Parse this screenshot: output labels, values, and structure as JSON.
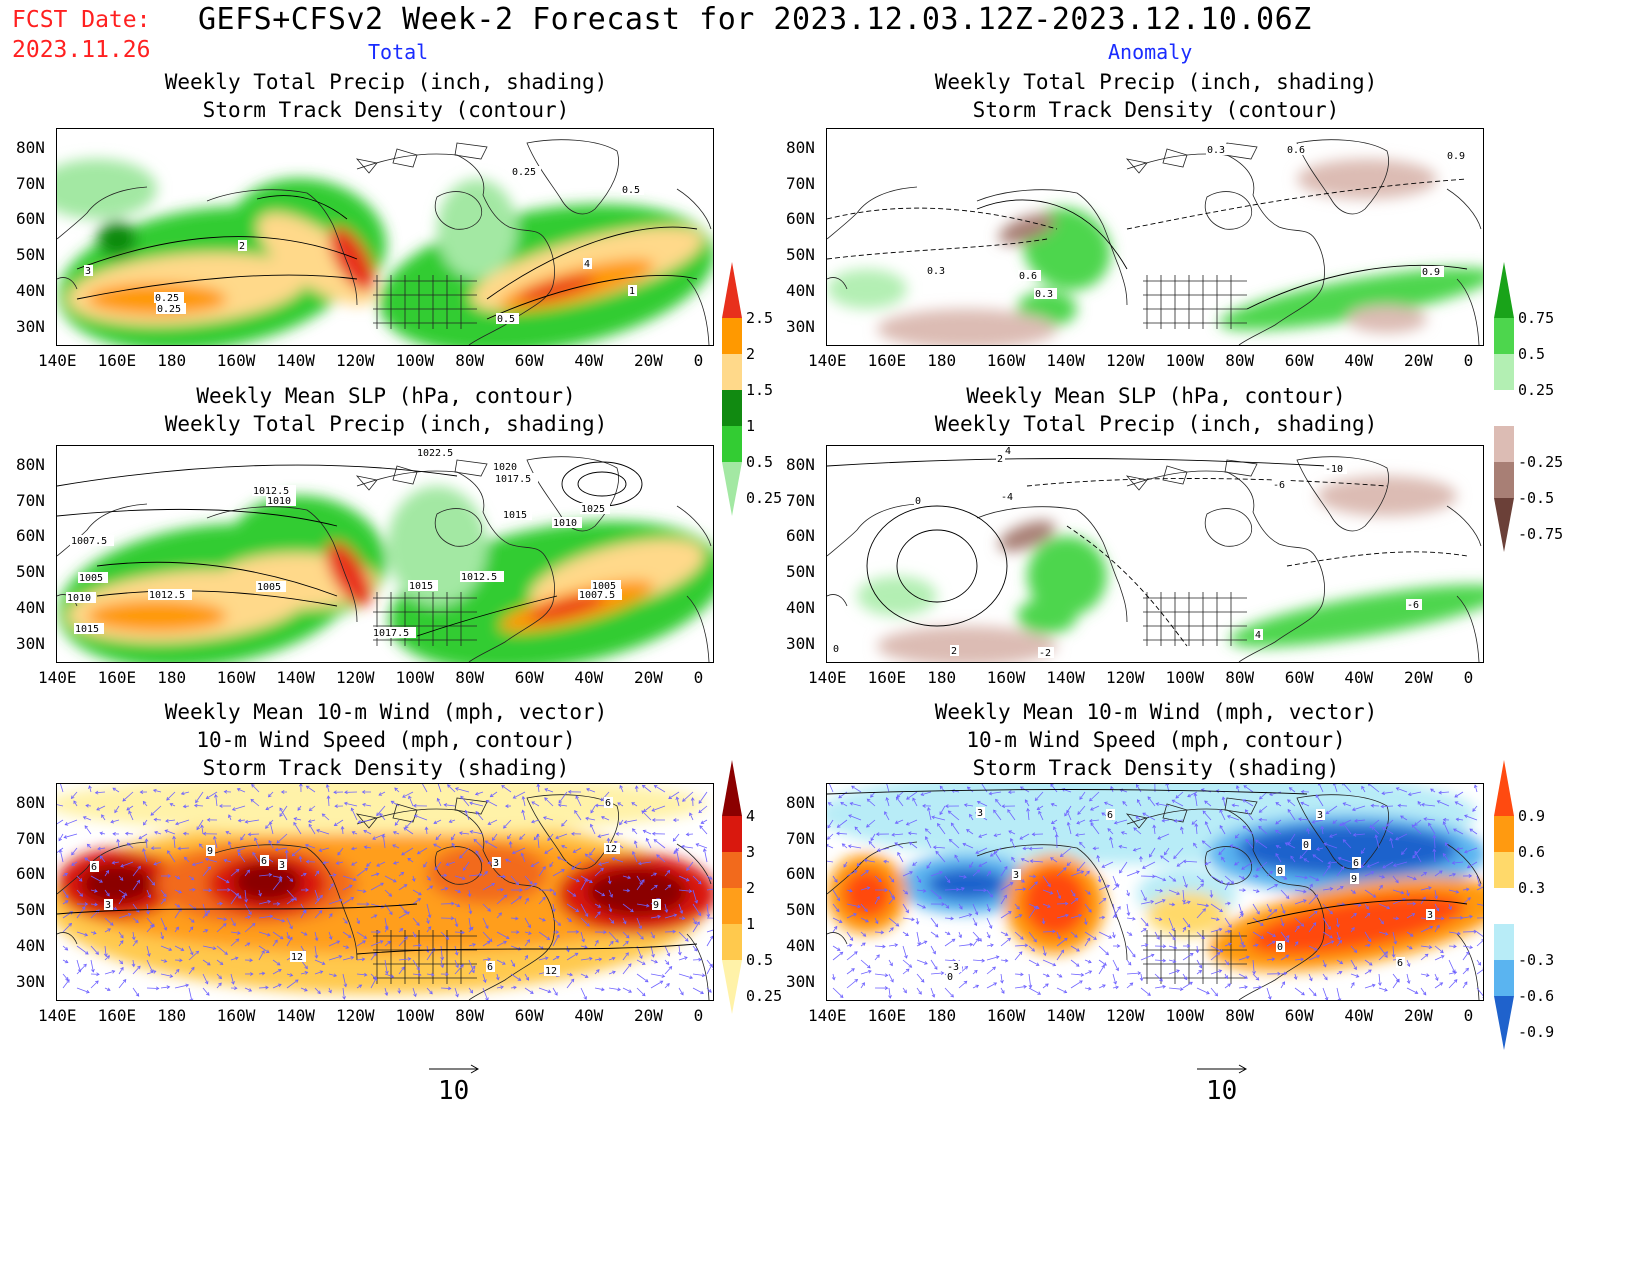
{
  "header": {
    "fcst_label": "FCST Date:",
    "fcst_date": "2023.11.26",
    "title": "GEFS+CFSv2 Week-2 Forecast for 2023.12.03.12Z-2023.12.10.06Z",
    "col_left": "Total",
    "col_right": "Anomaly"
  },
  "panels": {
    "precip_total": {
      "line1": "Weekly Total Precip (inch, shading)",
      "line2": "Storm Track Density (contour)"
    },
    "precip_anom": {
      "line1": "Weekly Total Precip (inch, shading)",
      "line2": "Storm Track Density (contour)"
    },
    "slp_total": {
      "line1": "Weekly Mean SLP (hPa, contour)",
      "line2": "Weekly Total Precip (inch, shading)"
    },
    "slp_anom": {
      "line1": "Weekly Mean SLP (hPa, contour)",
      "line2": "Weekly Total Precip (inch, shading)"
    },
    "wind_total": {
      "line1": "Weekly Mean 10-m Wind (mph, vector)",
      "line2": "10-m Wind Speed (mph, contour)",
      "line3": "Storm Track Density (shading)"
    },
    "wind_anom": {
      "line1": "Weekly Mean 10-m Wind (mph, vector)",
      "line2": "10-m Wind Speed (mph, contour)",
      "line3": "Storm Track Density (shading)"
    }
  },
  "axes": {
    "lat_ticks": [
      "80N",
      "70N",
      "60N",
      "50N",
      "40N",
      "30N"
    ],
    "lon_ticks": [
      "140E",
      "160E",
      "180",
      "160W",
      "140W",
      "120W",
      "100W",
      "80W",
      "60W",
      "40W",
      "20W",
      "0"
    ]
  },
  "colorbars": {
    "precip_total": {
      "labels": [
        "2.5",
        "2",
        "1.5",
        "1",
        "0.5",
        "0.25"
      ],
      "colors": [
        "#e8301c",
        "#ff9900",
        "#ffd98a",
        "#118a11",
        "#33cc33",
        "#a3e8a3"
      ]
    },
    "precip_anom": {
      "labels": [
        "0.75",
        "0.5",
        "0.25",
        "-0.25",
        "-0.5",
        "-0.75"
      ],
      "colors": [
        "#19a319",
        "#4dd64d",
        "#b3efb3",
        "#ffffff",
        "#dcbcb4",
        "#a87f75",
        "#6b4038"
      ]
    },
    "std_total": {
      "labels": [
        "4",
        "3",
        "2",
        "1",
        "0.5",
        "0.25"
      ],
      "colors": [
        "#8b0000",
        "#d9180e",
        "#f26a1c",
        "#ff9e1a",
        "#ffc94d",
        "#fff2a8"
      ]
    },
    "std_anom": {
      "labels": [
        "0.9",
        "0.6",
        "0.3",
        "-0.3",
        "-0.6",
        "-0.9"
      ],
      "colors": [
        "#ff4a10",
        "#ff9a10",
        "#ffd96a",
        "#ffffff",
        "#b8ecf7",
        "#5ab4f0",
        "#1f62cc"
      ]
    }
  },
  "contour_labels": {
    "precip_total": [
      "0.25",
      "0.5",
      "3",
      "2",
      "1",
      "4",
      "0.25",
      "0.5",
      "0.25"
    ],
    "precip_anom": [
      "0.3",
      "0.6",
      "0.9",
      "0.3",
      "0.9",
      "0.6",
      "0.3"
    ],
    "slp_total": [
      "1022.5",
      "1020",
      "1017.5",
      "1012.5",
      "1010",
      "1025",
      "1015",
      "1010",
      "1005",
      "1007.5",
      "1012.5",
      "1015",
      "1017.5",
      "1012.5",
      "1005",
      "1007.5",
      "1005",
      "1010",
      "1015"
    ],
    "slp_anom": [
      "2",
      "4",
      "0",
      "-10",
      "-6",
      "-4",
      "2",
      "-2",
      "0",
      "-6",
      "4"
    ],
    "wind_total": [
      "6",
      "9",
      "3",
      "6",
      "3",
      "12",
      "6",
      "3",
      "12",
      "9",
      "12",
      "6"
    ],
    "wind_anom": [
      "3",
      "6",
      "3",
      "0",
      "3",
      "6",
      "9",
      "0",
      "3",
      "0",
      "-3",
      "0",
      "6"
    ]
  },
  "reference_vector": {
    "left": "10",
    "right": "10"
  }
}
